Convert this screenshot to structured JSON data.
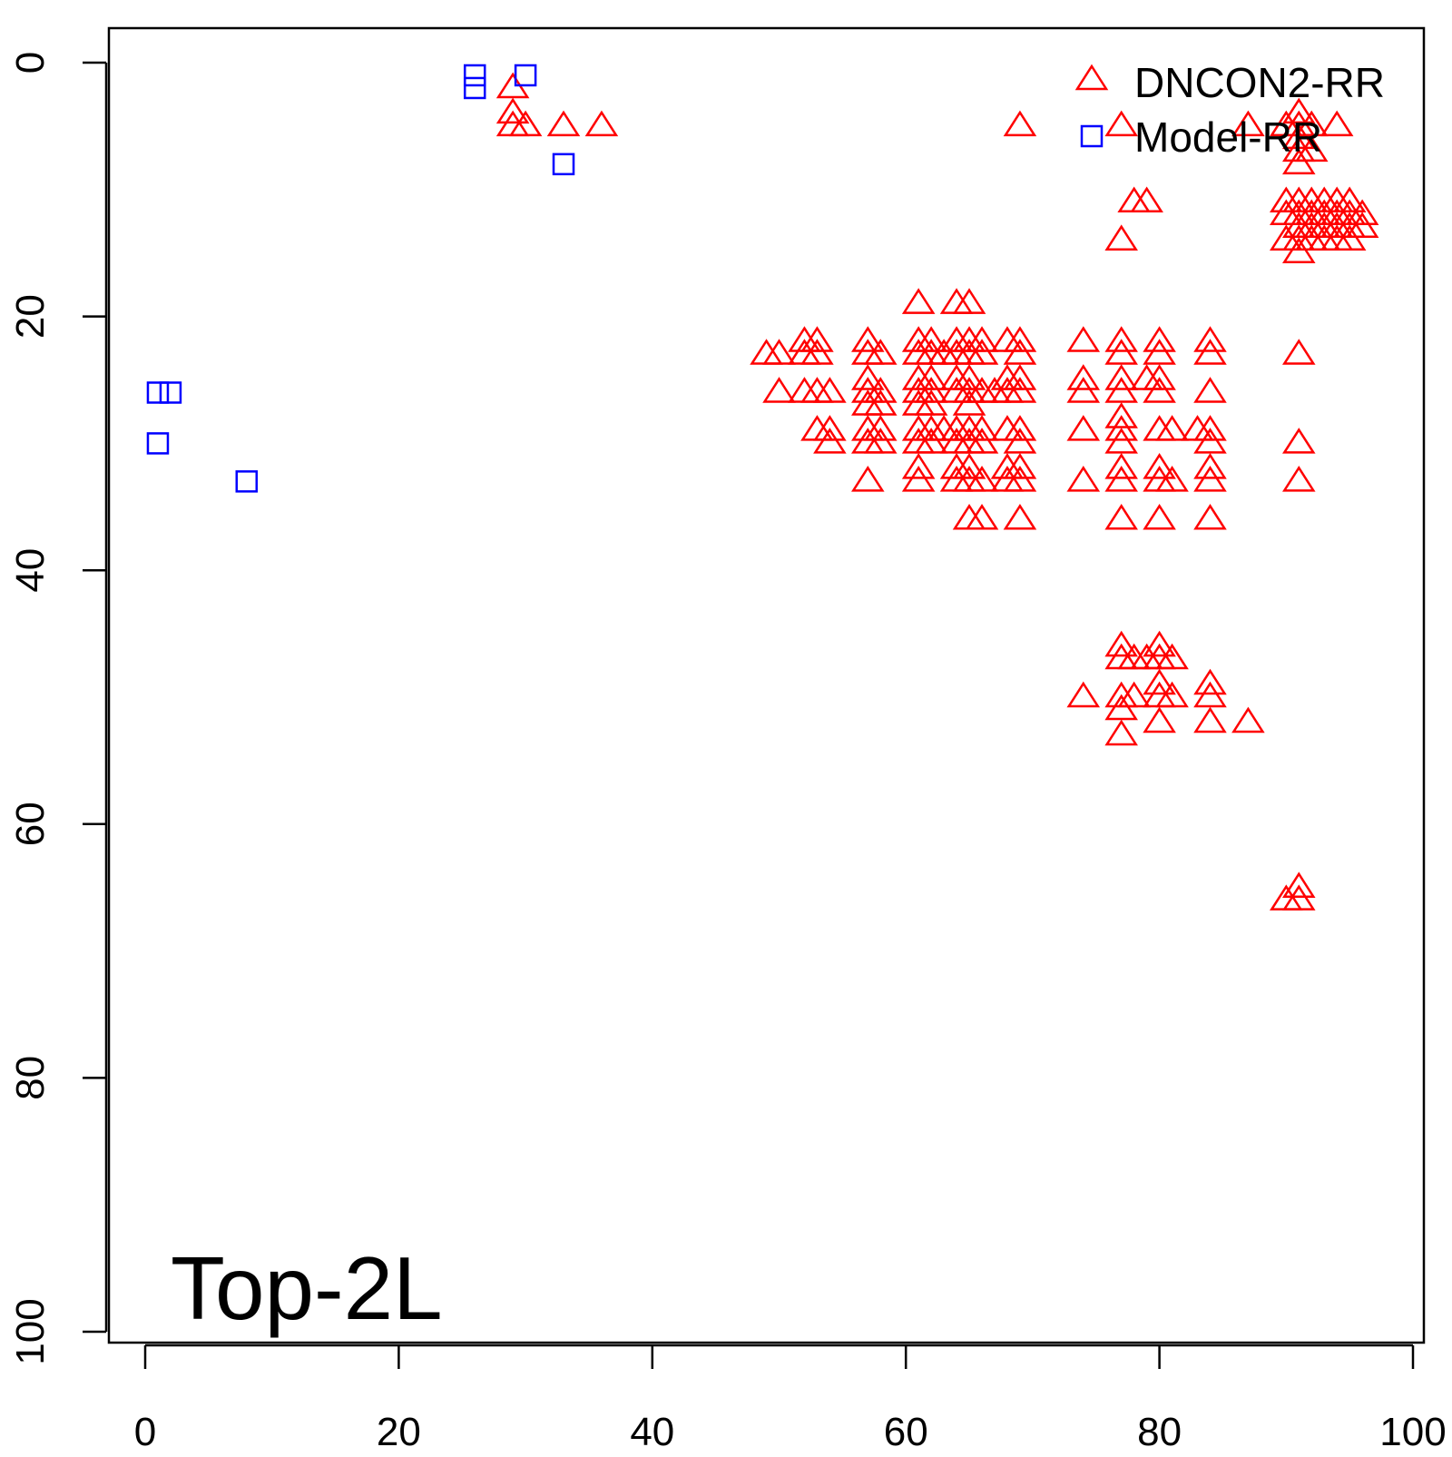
{
  "chart_data": {
    "type": "scatter",
    "title": "",
    "annotation": "Top-2L",
    "xlabel": "",
    "ylabel": "",
    "xlim": [
      0,
      100
    ],
    "ylim": [
      100,
      0
    ],
    "y_reversed": true,
    "xticks": [
      "0",
      "20",
      "40",
      "60",
      "80",
      "100"
    ],
    "yticks": [
      "0",
      "20",
      "40",
      "60",
      "80",
      "100"
    ],
    "grid": false,
    "legend_position": "top-right",
    "series": [
      {
        "name": "DNCON2-RR",
        "marker": "triangle",
        "color": "#ff0000",
        "points": [
          [
            29,
            2
          ],
          [
            29,
            4
          ],
          [
            29,
            5
          ],
          [
            30,
            5
          ],
          [
            33,
            5
          ],
          [
            36,
            5
          ],
          [
            69,
            5
          ],
          [
            77,
            5
          ],
          [
            87,
            5
          ],
          [
            90,
            5
          ],
          [
            91,
            4
          ],
          [
            91,
            5
          ],
          [
            91,
            6
          ],
          [
            91,
            7
          ],
          [
            91,
            8
          ],
          [
            92,
            5
          ],
          [
            92,
            7
          ],
          [
            94,
            5
          ],
          [
            78,
            11
          ],
          [
            79,
            11
          ],
          [
            77,
            14
          ],
          [
            90,
            11
          ],
          [
            91,
            11
          ],
          [
            92,
            11
          ],
          [
            93,
            11
          ],
          [
            94,
            11
          ],
          [
            95,
            11
          ],
          [
            90,
            12
          ],
          [
            91,
            12
          ],
          [
            92,
            12
          ],
          [
            93,
            12
          ],
          [
            94,
            12
          ],
          [
            95,
            12
          ],
          [
            96,
            12
          ],
          [
            91,
            13
          ],
          [
            92,
            13
          ],
          [
            93,
            13
          ],
          [
            94,
            13
          ],
          [
            95,
            13
          ],
          [
            96,
            13
          ],
          [
            90,
            14
          ],
          [
            91,
            14
          ],
          [
            92,
            14
          ],
          [
            93,
            14
          ],
          [
            94,
            14
          ],
          [
            95,
            14
          ],
          [
            91,
            15
          ],
          [
            61,
            19
          ],
          [
            64,
            19
          ],
          [
            65,
            19
          ],
          [
            52,
            22
          ],
          [
            53,
            22
          ],
          [
            57,
            22
          ],
          [
            61,
            22
          ],
          [
            62,
            22
          ],
          [
            64,
            22
          ],
          [
            65,
            22
          ],
          [
            66,
            22
          ],
          [
            68,
            22
          ],
          [
            69,
            22
          ],
          [
            74,
            22
          ],
          [
            77,
            22
          ],
          [
            80,
            22
          ],
          [
            84,
            22
          ],
          [
            49,
            23
          ],
          [
            50,
            23
          ],
          [
            52,
            23
          ],
          [
            53,
            23
          ],
          [
            57,
            23
          ],
          [
            58,
            23
          ],
          [
            61,
            23
          ],
          [
            62,
            23
          ],
          [
            63,
            23
          ],
          [
            64,
            23
          ],
          [
            65,
            23
          ],
          [
            66,
            23
          ],
          [
            69,
            23
          ],
          [
            77,
            23
          ],
          [
            80,
            23
          ],
          [
            84,
            23
          ],
          [
            91,
            23
          ],
          [
            57,
            25
          ],
          [
            61,
            25
          ],
          [
            62,
            25
          ],
          [
            64,
            25
          ],
          [
            65,
            25
          ],
          [
            68,
            25
          ],
          [
            69,
            25
          ],
          [
            74,
            25
          ],
          [
            77,
            25
          ],
          [
            79,
            25
          ],
          [
            80,
            25
          ],
          [
            50,
            26
          ],
          [
            52,
            26
          ],
          [
            53,
            26
          ],
          [
            54,
            26
          ],
          [
            57,
            26
          ],
          [
            58,
            26
          ],
          [
            61,
            26
          ],
          [
            62,
            26
          ],
          [
            64,
            26
          ],
          [
            65,
            26
          ],
          [
            66,
            26
          ],
          [
            67,
            26
          ],
          [
            68,
            26
          ],
          [
            69,
            26
          ],
          [
            74,
            26
          ],
          [
            77,
            26
          ],
          [
            80,
            26
          ],
          [
            84,
            26
          ],
          [
            57,
            27
          ],
          [
            58,
            27
          ],
          [
            61,
            27
          ],
          [
            62,
            27
          ],
          [
            65,
            27
          ],
          [
            77,
            28
          ],
          [
            53,
            29
          ],
          [
            54,
            29
          ],
          [
            57,
            29
          ],
          [
            58,
            29
          ],
          [
            61,
            29
          ],
          [
            62,
            29
          ],
          [
            63,
            29
          ],
          [
            64,
            29
          ],
          [
            65,
            29
          ],
          [
            66,
            29
          ],
          [
            68,
            29
          ],
          [
            69,
            29
          ],
          [
            74,
            29
          ],
          [
            77,
            29
          ],
          [
            80,
            29
          ],
          [
            81,
            29
          ],
          [
            83,
            29
          ],
          [
            84,
            29
          ],
          [
            54,
            30
          ],
          [
            57,
            30
          ],
          [
            58,
            30
          ],
          [
            61,
            30
          ],
          [
            62,
            30
          ],
          [
            64,
            30
          ],
          [
            65,
            30
          ],
          [
            66,
            30
          ],
          [
            69,
            30
          ],
          [
            77,
            30
          ],
          [
            84,
            30
          ],
          [
            91,
            30
          ],
          [
            61,
            32
          ],
          [
            64,
            32
          ],
          [
            65,
            32
          ],
          [
            68,
            32
          ],
          [
            69,
            32
          ],
          [
            77,
            32
          ],
          [
            80,
            32
          ],
          [
            84,
            32
          ],
          [
            57,
            33
          ],
          [
            61,
            33
          ],
          [
            64,
            33
          ],
          [
            65,
            33
          ],
          [
            66,
            33
          ],
          [
            68,
            33
          ],
          [
            69,
            33
          ],
          [
            74,
            33
          ],
          [
            77,
            33
          ],
          [
            80,
            33
          ],
          [
            81,
            33
          ],
          [
            84,
            33
          ],
          [
            91,
            33
          ],
          [
            65,
            36
          ],
          [
            66,
            36
          ],
          [
            69,
            36
          ],
          [
            77,
            36
          ],
          [
            80,
            36
          ],
          [
            84,
            36
          ],
          [
            77,
            46
          ],
          [
            77,
            47
          ],
          [
            78,
            47
          ],
          [
            79,
            47
          ],
          [
            80,
            46
          ],
          [
            80,
            47
          ],
          [
            81,
            47
          ],
          [
            80,
            49
          ],
          [
            84,
            49
          ],
          [
            74,
            50
          ],
          [
            77,
            50
          ],
          [
            78,
            50
          ],
          [
            80,
            50
          ],
          [
            81,
            50
          ],
          [
            84,
            50
          ],
          [
            77,
            51
          ],
          [
            77,
            53
          ],
          [
            80,
            52
          ],
          [
            84,
            52
          ],
          [
            87,
            52
          ],
          [
            90,
            66
          ],
          [
            91,
            65
          ],
          [
            91,
            66
          ]
        ]
      },
      {
        "name": "Model-RR",
        "marker": "square",
        "color": "#0000ff",
        "points": [
          [
            26,
            1
          ],
          [
            26,
            2
          ],
          [
            30,
            1
          ],
          [
            33,
            8
          ],
          [
            1,
            26
          ],
          [
            2,
            26
          ],
          [
            1,
            30
          ],
          [
            8,
            33
          ]
        ]
      }
    ]
  }
}
